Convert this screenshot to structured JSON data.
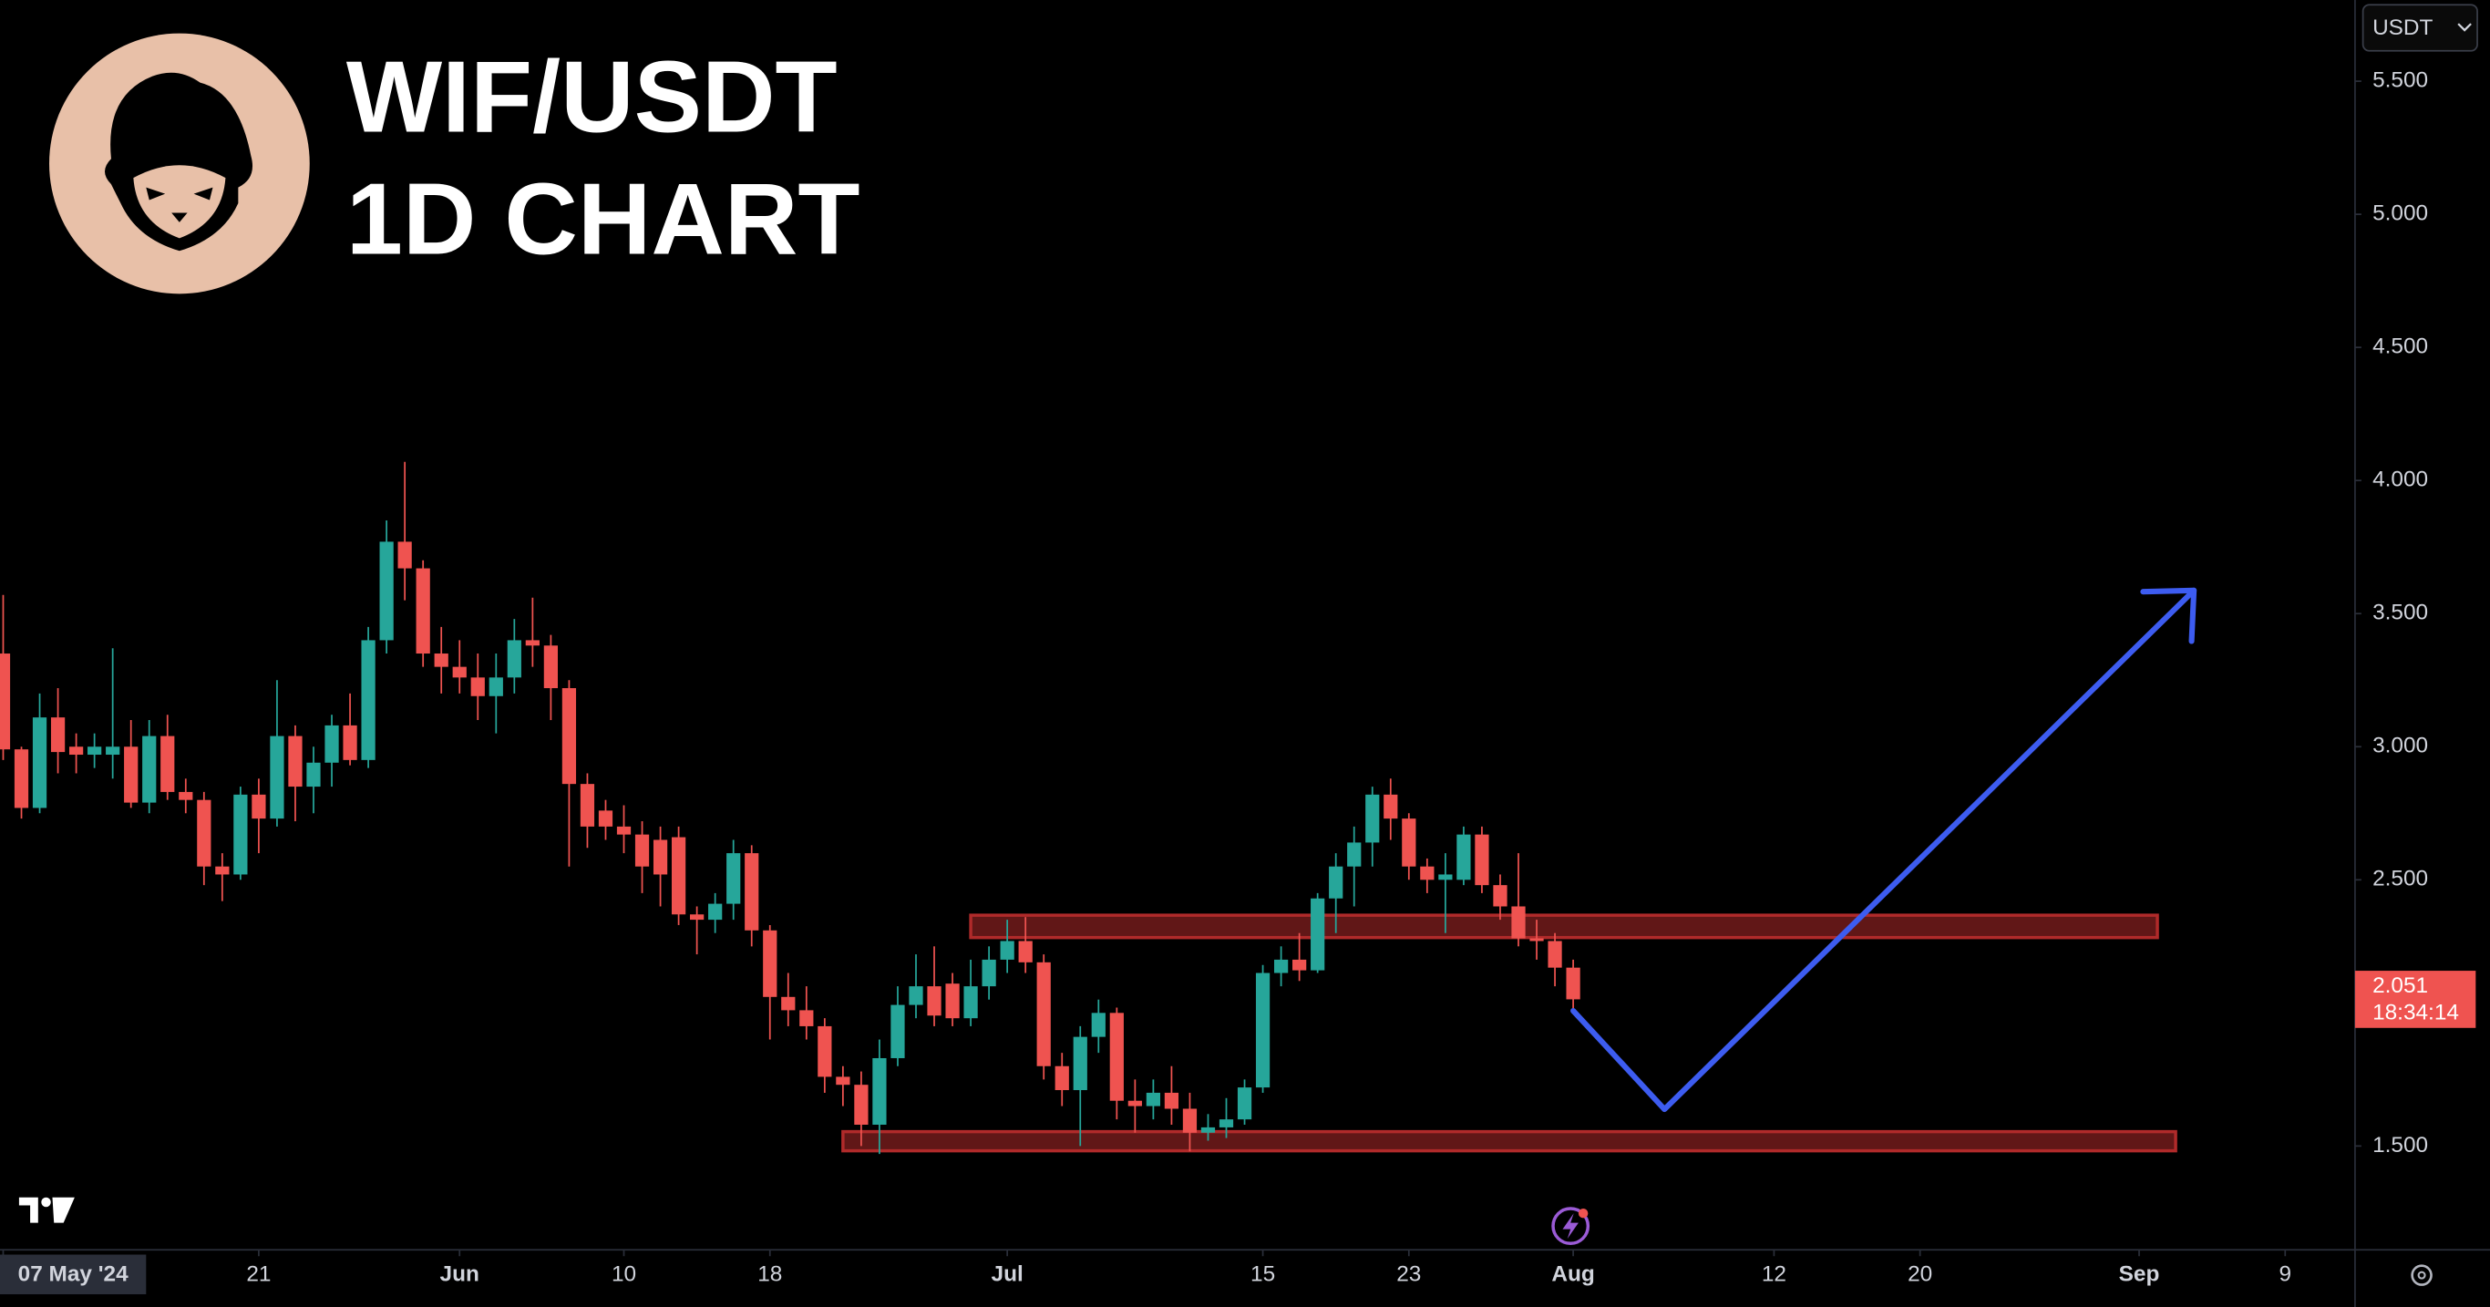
{
  "chart_data": {
    "type": "candlestick",
    "title": "WIF/USDT",
    "subtitle": "1D CHART",
    "currency": "USDT",
    "countdown": "18:34:14",
    "up_color": "#26a69a",
    "down_color": "#ef5350",
    "x": [
      "2024-05-07",
      "2024-05-08",
      "2024-05-09",
      "2024-05-10",
      "2024-05-11",
      "2024-05-12",
      "2024-05-13",
      "2024-05-14",
      "2024-05-15",
      "2024-05-16",
      "2024-05-17",
      "2024-05-18",
      "2024-05-19",
      "2024-05-20",
      "2024-05-21",
      "2024-05-22",
      "2024-05-23",
      "2024-05-24",
      "2024-05-25",
      "2024-05-26",
      "2024-05-27",
      "2024-05-28",
      "2024-05-29",
      "2024-05-30",
      "2024-05-31",
      "2024-06-01",
      "2024-06-02",
      "2024-06-03",
      "2024-06-04",
      "2024-06-05",
      "2024-06-06",
      "2024-06-07",
      "2024-06-08",
      "2024-06-09",
      "2024-06-10",
      "2024-06-11",
      "2024-06-12",
      "2024-06-13",
      "2024-06-14",
      "2024-06-15",
      "2024-06-16",
      "2024-06-17",
      "2024-06-18",
      "2024-06-19",
      "2024-06-20",
      "2024-06-21",
      "2024-06-22",
      "2024-06-23",
      "2024-06-24",
      "2024-06-25",
      "2024-06-26",
      "2024-06-27",
      "2024-06-28",
      "2024-06-29",
      "2024-06-30",
      "2024-07-01",
      "2024-07-02",
      "2024-07-03",
      "2024-07-04",
      "2024-07-05",
      "2024-07-06",
      "2024-07-07",
      "2024-07-08",
      "2024-07-09",
      "2024-07-10",
      "2024-07-11",
      "2024-07-12",
      "2024-07-13",
      "2024-07-14",
      "2024-07-15",
      "2024-07-16",
      "2024-07-17",
      "2024-07-18",
      "2024-07-19",
      "2024-07-20",
      "2024-07-21",
      "2024-07-22",
      "2024-07-23",
      "2024-07-24",
      "2024-07-25",
      "2024-07-26",
      "2024-07-27",
      "2024-07-28",
      "2024-07-29",
      "2024-07-30",
      "2024-07-31",
      "2024-08-01"
    ],
    "open": [
      3.35,
      2.99,
      2.77,
      3.11,
      3.0,
      2.97,
      2.97,
      3.0,
      2.79,
      3.04,
      2.83,
      2.8,
      2.55,
      2.52,
      2.82,
      2.73,
      3.04,
      2.85,
      2.94,
      3.08,
      2.95,
      3.4,
      3.77,
      3.67,
      3.35,
      3.3,
      3.26,
      3.19,
      3.26,
      3.4,
      3.38,
      3.22,
      2.86,
      2.76,
      2.7,
      2.67,
      2.65,
      2.66,
      2.37,
      2.35,
      2.41,
      2.6,
      2.31,
      2.06,
      2.01,
      1.95,
      1.76,
      1.73,
      1.58,
      1.83,
      2.03,
      2.1,
      2.11,
      1.98,
      2.1,
      2.2,
      2.27,
      2.19,
      1.8,
      1.71,
      1.91,
      2.0,
      1.67,
      1.65,
      1.7,
      1.64,
      1.55,
      1.57,
      1.6,
      1.72,
      2.15,
      2.2,
      2.16,
      2.43,
      2.55,
      2.64,
      2.82,
      2.73,
      2.55,
      2.5,
      2.5,
      2.67,
      2.48,
      2.4,
      2.28,
      2.27,
      2.17
    ],
    "high": [
      3.57,
      3.0,
      3.2,
      3.22,
      3.05,
      3.05,
      3.37,
      3.1,
      3.1,
      3.12,
      2.88,
      2.83,
      2.6,
      2.85,
      2.88,
      3.25,
      3.08,
      3.0,
      3.12,
      3.2,
      3.45,
      3.85,
      4.07,
      3.7,
      3.45,
      3.4,
      3.35,
      3.35,
      3.48,
      3.56,
      3.42,
      3.25,
      2.9,
      2.8,
      2.78,
      2.72,
      2.7,
      2.7,
      2.4,
      2.45,
      2.65,
      2.63,
      2.33,
      2.15,
      2.1,
      1.98,
      1.8,
      1.78,
      1.9,
      2.1,
      2.22,
      2.25,
      2.15,
      2.2,
      2.25,
      2.35,
      2.36,
      2.22,
      1.85,
      1.95,
      2.05,
      2.02,
      1.75,
      1.75,
      1.8,
      1.7,
      1.62,
      1.68,
      1.75,
      2.18,
      2.25,
      2.3,
      2.45,
      2.6,
      2.7,
      2.85,
      2.88,
      2.75,
      2.58,
      2.6,
      2.7,
      2.7,
      2.52,
      2.6,
      2.35,
      2.3,
      2.2
    ],
    "low": [
      2.95,
      2.73,
      2.75,
      2.9,
      2.9,
      2.92,
      2.88,
      2.77,
      2.75,
      2.8,
      2.75,
      2.48,
      2.42,
      2.5,
      2.6,
      2.7,
      2.72,
      2.75,
      2.85,
      2.93,
      2.92,
      3.35,
      3.55,
      3.3,
      3.2,
      3.2,
      3.1,
      3.05,
      3.2,
      3.3,
      3.1,
      2.55,
      2.62,
      2.65,
      2.6,
      2.45,
      2.4,
      2.33,
      2.22,
      2.3,
      2.35,
      2.25,
      1.9,
      1.95,
      1.9,
      1.7,
      1.65,
      1.5,
      1.47,
      1.8,
      1.98,
      1.95,
      1.95,
      1.95,
      2.05,
      2.15,
      2.15,
      1.75,
      1.65,
      1.5,
      1.85,
      1.6,
      1.55,
      1.6,
      1.58,
      1.48,
      1.52,
      1.53,
      1.58,
      1.7,
      2.1,
      2.12,
      2.15,
      2.3,
      2.4,
      2.55,
      2.65,
      2.5,
      2.45,
      2.3,
      2.48,
      2.45,
      2.35,
      2.25,
      2.2,
      2.1,
      2.0
    ],
    "close": [
      2.99,
      2.77,
      3.11,
      2.98,
      2.97,
      3.0,
      3.0,
      2.79,
      3.04,
      2.83,
      2.8,
      2.55,
      2.52,
      2.82,
      2.73,
      3.04,
      2.85,
      2.94,
      3.08,
      2.95,
      3.4,
      3.77,
      3.67,
      3.35,
      3.3,
      3.26,
      3.19,
      3.26,
      3.4,
      3.38,
      3.22,
      2.86,
      2.7,
      2.7,
      2.67,
      2.55,
      2.52,
      2.37,
      2.35,
      2.41,
      2.6,
      2.31,
      2.06,
      2.01,
      1.95,
      1.76,
      1.73,
      1.58,
      1.83,
      2.03,
      2.1,
      1.99,
      1.98,
      2.1,
      2.2,
      2.27,
      2.19,
      1.8,
      1.71,
      1.91,
      2.0,
      1.67,
      1.65,
      1.7,
      1.64,
      1.55,
      1.57,
      1.6,
      1.72,
      2.15,
      2.2,
      2.16,
      2.43,
      2.55,
      2.64,
      2.82,
      2.73,
      2.55,
      2.5,
      2.52,
      2.67,
      2.48,
      2.4,
      2.28,
      2.27,
      2.17,
      2.051
    ],
    "xlim": [
      "2024-05-07",
      "2024-09-13"
    ],
    "xticks": [
      {
        "value": "2024-05-07",
        "label": "07 May '24"
      },
      {
        "value": "2024-05-21",
        "label": "21"
      },
      {
        "value": "2024-06-01",
        "label": "Jun"
      },
      {
        "value": "2024-06-10",
        "label": "10"
      },
      {
        "value": "2024-06-18",
        "label": "18"
      },
      {
        "value": "2024-07-01",
        "label": "Jul"
      },
      {
        "value": "2024-07-15",
        "label": "15"
      },
      {
        "value": "2024-07-23",
        "label": "23"
      },
      {
        "value": "2024-08-01",
        "label": "Aug"
      },
      {
        "value": "2024-08-12",
        "label": "12"
      },
      {
        "value": "2024-08-20",
        "label": "20"
      },
      {
        "value": "2024-09-01",
        "label": "Sep"
      },
      {
        "value": "2024-09-09",
        "label": "9"
      }
    ],
    "ylim": [
      1.11,
      5.805
    ],
    "yticks": [
      {
        "value": 1.5,
        "label": "1.500"
      },
      {
        "value": 2.5,
        "label": "2.500"
      },
      {
        "value": 3,
        "label": "3.000"
      },
      {
        "value": 3.5,
        "label": "3.500"
      },
      {
        "value": 4,
        "label": "4.000"
      },
      {
        "value": 4.5,
        "label": "4.500"
      },
      {
        "value": 5,
        "label": "5.000"
      },
      {
        "value": 5.5,
        "label": "5.500"
      }
    ],
    "zones": [
      {
        "start": "2024-06-29",
        "end": "2024-09-02",
        "low": 2.283,
        "high": 2.367,
        "color": "#b02a2a"
      },
      {
        "start": "2024-06-22",
        "end": "2024-09-03",
        "low": 1.482,
        "high": 1.554,
        "color": "#b02a2a"
      }
    ],
    "projection": {
      "x": [
        "2024-08-01",
        "2024-08-06",
        "2024-09-04"
      ],
      "y": [
        2.008,
        1.638,
        3.587
      ],
      "color": "#3d5cf0"
    }
  }
}
